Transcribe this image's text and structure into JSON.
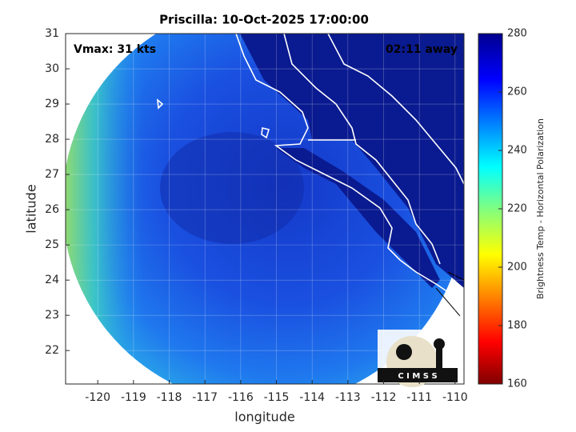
{
  "chart_data": {
    "type": "map",
    "title": "Priscilla: 10-Oct-2025 17:00:00",
    "xlabel": "longitude",
    "ylabel": "latitude",
    "xlim": [
      -120.9,
      -109.75
    ],
    "ylim": [
      21.05,
      31
    ],
    "xticks": [
      -120,
      -119,
      -118,
      -117,
      -116,
      -115,
      -114,
      -113,
      -112,
      -111,
      -110
    ],
    "yticks": [
      22,
      23,
      24,
      25,
      26,
      27,
      28,
      29,
      30,
      31
    ],
    "grid": true,
    "annotations": {
      "vmax": "Vmax: 31 kts",
      "away": "02:11 away"
    },
    "colorbar": {
      "label": "Brightness Temp - Horizontal Polarization",
      "lim": [
        160,
        280
      ],
      "ticks": [
        160,
        180,
        200,
        220,
        240,
        260,
        280
      ]
    },
    "logo": "C I M S S"
  }
}
